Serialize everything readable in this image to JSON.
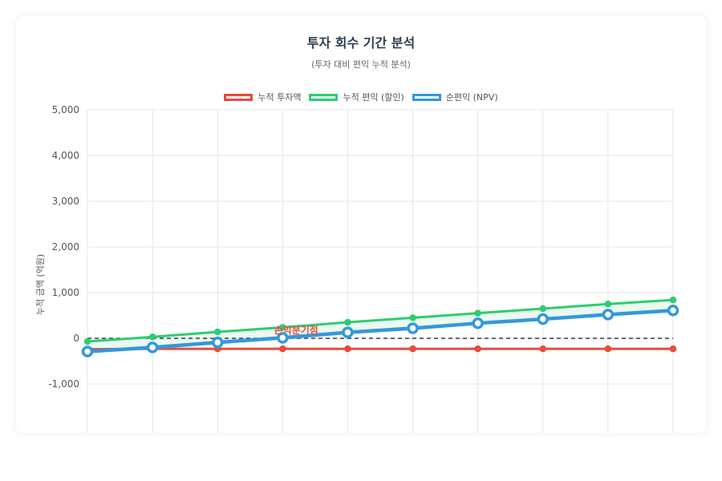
{
  "chart_data": {
    "type": "line",
    "title": "투자 회수 기간 분석",
    "subtitle": "(투자 대비 편익 누적 분석)",
    "ylabel": "누적 금액 (억원)",
    "ylim": [
      -1600,
      5000
    ],
    "yticks": [
      5000,
      4000,
      3000,
      2000,
      1000,
      0,
      -1000
    ],
    "ytick_labels": [
      "5,000",
      "4,000",
      "3,000",
      "2,000",
      "1,000",
      "0",
      "-1,000"
    ],
    "x": [
      0,
      1,
      2,
      3,
      4,
      5,
      6,
      7,
      8,
      9
    ],
    "grid": true,
    "legend_position": "top",
    "series": [
      {
        "name": "누적 투자액",
        "color": "#e74c3c",
        "values": [
          -240,
          -230,
          -230,
          -230,
          -230,
          -230,
          -230,
          -230,
          -230,
          -230
        ]
      },
      {
        "name": "누적 편익 (할인)",
        "color": "#2ecc71",
        "fill": "#e8f8ee",
        "values": [
          -70,
          30,
          140,
          240,
          350,
          450,
          550,
          650,
          750,
          840
        ]
      },
      {
        "name": "순편익 (NPV)",
        "color": "#3498db",
        "values": [
          -290,
          -200,
          -90,
          10,
          130,
          220,
          330,
          420,
          520,
          610
        ]
      }
    ],
    "reference_line": {
      "value": 0,
      "color": "#2c3e50"
    },
    "annotation": {
      "text": "손익분기점",
      "color": "#e74c3c"
    }
  }
}
